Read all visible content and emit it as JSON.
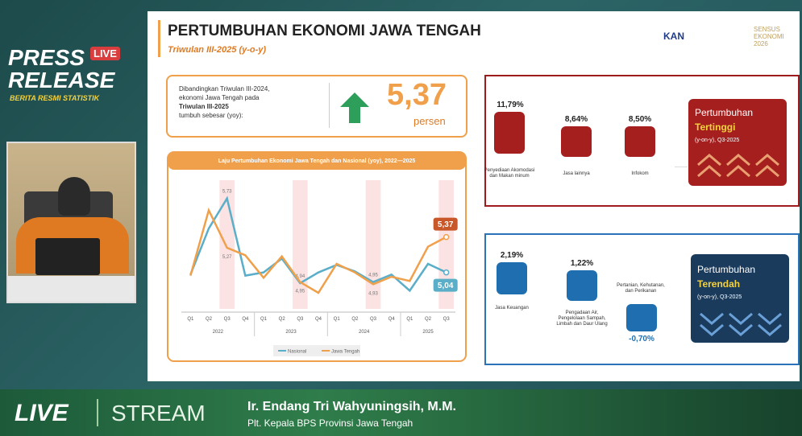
{
  "overlay": {
    "press": "PRESS",
    "live_badge": "LIVE",
    "release": "RELEASE",
    "tagline": "BERITA RESMI STATISTIK",
    "live": "LIVE",
    "stream": "STREAM",
    "speaker_name": "Ir. Endang Tri Wahyuningsih, M.M.",
    "speaker_title": "Plt. Kepala BPS Provinsi Jawa Tengah"
  },
  "slide": {
    "title": "PERTUMBUHAN EKONOMI JAWA TENGAH",
    "subtitle": "Triwulan III-2025 (y-o-y)",
    "logos": {
      "kan": "KAN",
      "sensus": "SENSUS EKONOMI 2026"
    },
    "summary": {
      "line1": "Dibandingkan Triwulan III-2024,",
      "line2": "ekonomi Jawa Tengah pada",
      "line3": "Triwulan III-2025",
      "line4": "tumbuh sebesar (yoy):",
      "value": "5,37",
      "unit": "persen"
    },
    "highest": {
      "heading": "Pertumbuhan",
      "emphasis": "Tertinggi",
      "period": "(y-on-y), Q3-2025",
      "items": [
        {
          "value": "11,79%",
          "label": "Penyediaan Akomodasi dan Makan minum"
        },
        {
          "value": "8,64%",
          "label": "Jasa lainnya"
        },
        {
          "value": "8,50%",
          "label": "Infokom"
        }
      ]
    },
    "lowest": {
      "heading": "Pertumbuhan",
      "emphasis": "Terendah",
      "period": "(y-on-y), Q3-2025",
      "items": [
        {
          "value": "2,19%",
          "label": "Jasa Keuangan"
        },
        {
          "value": "1,22%",
          "label": "Pengadaan Air, Pengelolaan Sampah, Limbah dan Daur Ulang"
        },
        {
          "value": "-0,70%",
          "label": "Pertanian, Kehutanan, dan Perikanan"
        }
      ]
    }
  },
  "chart_data": {
    "type": "line",
    "title": "Laju Pertumbuhan Ekonomi Jawa Tengah dan Nasional (yoy), 2022—2025",
    "categories": [
      "Q1",
      "Q2",
      "Q3",
      "Q4",
      "Q1",
      "Q2",
      "Q3",
      "Q4",
      "Q1",
      "Q2",
      "Q3",
      "Q4",
      "Q1",
      "Q2",
      "Q3"
    ],
    "x_groups": [
      "2022",
      "2023",
      "2024",
      "2025"
    ],
    "ylim": [
      4.7,
      5.9
    ],
    "series": [
      {
        "name": "Nasional",
        "color": "#5aaec8",
        "values": [
          5.02,
          5.45,
          5.73,
          5.01,
          5.04,
          5.17,
          4.94,
          5.04,
          5.11,
          5.05,
          4.95,
          5.02,
          4.87,
          5.12,
          5.04
        ],
        "value_labels": [
          null,
          null,
          "5,73",
          null,
          null,
          null,
          "4,94",
          null,
          null,
          null,
          "4,95",
          null,
          null,
          null,
          "5,04"
        ]
      },
      {
        "name": "Jawa Tengah",
        "color": "#f0a04b",
        "values": [
          5.01,
          5.62,
          5.27,
          5.2,
          4.99,
          5.19,
          4.95,
          4.85,
          5.12,
          5.04,
          4.93,
          5.0,
          4.96,
          5.28,
          5.37
        ],
        "value_labels": [
          null,
          null,
          "5,27",
          null,
          null,
          null,
          "4,95",
          null,
          null,
          null,
          "4,93",
          null,
          null,
          null,
          "5,37"
        ]
      }
    ]
  }
}
